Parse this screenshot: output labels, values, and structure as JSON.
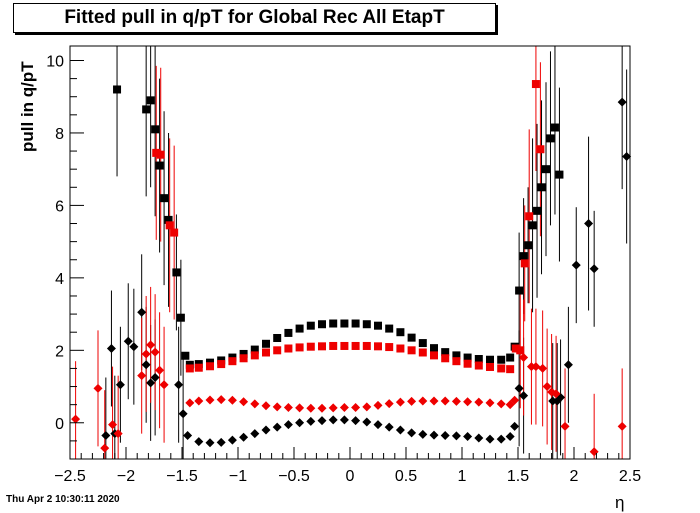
{
  "title": "Fitted pull in q/pT for Global Rec All EtapT",
  "timestamp": "Thu Apr  2 10:30:11 2020",
  "chart_data": {
    "type": "scatter",
    "title": "Fitted pull in q/pT for Global Rec All EtapT",
    "xlabel": "η",
    "ylabel": "pull in q/pT",
    "xlim": [
      -2.5,
      2.5
    ],
    "ylim": [
      -1.0,
      10.4
    ],
    "x_ticks": [
      "−2.5",
      "−2",
      "−1.5",
      "−1",
      "−0.5",
      "0",
      "0.5",
      "1",
      "1.5",
      "2",
      "2.5"
    ],
    "x_tick_values": [
      -2.5,
      -2,
      -1.5,
      -1,
      -0.5,
      0,
      0.5,
      1,
      1.5,
      2,
      2.5
    ],
    "y_ticks": [
      "0",
      "2",
      "4",
      "6",
      "8",
      "10"
    ],
    "y_tick_values": [
      0,
      2,
      4,
      6,
      8,
      10
    ],
    "grid": false,
    "series": [
      {
        "marker": "square",
        "color": "#000000",
        "points": [
          [
            -2.08,
            9.2
          ],
          [
            -1.82,
            8.65
          ],
          [
            -1.78,
            8.9
          ],
          [
            -1.74,
            8.1
          ],
          [
            -1.7,
            7.1
          ],
          [
            -1.66,
            6.2
          ],
          [
            -1.62,
            5.6
          ],
          [
            -1.55,
            4.15
          ],
          [
            -1.51,
            2.9
          ],
          [
            -1.47,
            1.85
          ],
          [
            -1.43,
            1.6
          ],
          [
            -1.35,
            1.62
          ],
          [
            -1.25,
            1.66
          ],
          [
            -1.15,
            1.72
          ],
          [
            -1.05,
            1.8
          ],
          [
            -0.95,
            1.9
          ],
          [
            -0.85,
            2.02
          ],
          [
            -0.75,
            2.18
          ],
          [
            -0.65,
            2.34
          ],
          [
            -0.55,
            2.48
          ],
          [
            -0.45,
            2.6
          ],
          [
            -0.35,
            2.68
          ],
          [
            -0.25,
            2.72
          ],
          [
            -0.15,
            2.74
          ],
          [
            -0.05,
            2.74
          ],
          [
            0.05,
            2.74
          ],
          [
            0.15,
            2.72
          ],
          [
            0.25,
            2.68
          ],
          [
            0.35,
            2.6
          ],
          [
            0.45,
            2.5
          ],
          [
            0.55,
            2.35
          ],
          [
            0.65,
            2.2
          ],
          [
            0.75,
            2.06
          ],
          [
            0.85,
            1.95
          ],
          [
            0.95,
            1.86
          ],
          [
            1.05,
            1.8
          ],
          [
            1.15,
            1.76
          ],
          [
            1.25,
            1.74
          ],
          [
            1.35,
            1.74
          ],
          [
            1.43,
            1.8
          ],
          [
            1.47,
            2.1
          ],
          [
            1.51,
            3.65
          ],
          [
            1.55,
            4.6
          ],
          [
            1.59,
            4.9
          ],
          [
            1.63,
            5.45
          ],
          [
            1.67,
            5.85
          ],
          [
            1.71,
            6.5
          ],
          [
            1.75,
            7.0
          ],
          [
            1.79,
            7.85
          ],
          [
            1.83,
            8.15
          ],
          [
            1.87,
            6.85
          ]
        ]
      },
      {
        "marker": "square",
        "color": "#ee0000",
        "points": [
          [
            -1.73,
            7.45
          ],
          [
            -1.69,
            7.4
          ],
          [
            -1.61,
            5.45
          ],
          [
            -1.57,
            5.25
          ],
          [
            -1.43,
            1.5
          ],
          [
            -1.35,
            1.52
          ],
          [
            -1.25,
            1.56
          ],
          [
            -1.15,
            1.62
          ],
          [
            -1.05,
            1.7
          ],
          [
            -0.95,
            1.78
          ],
          [
            -0.85,
            1.86
          ],
          [
            -0.75,
            1.94
          ],
          [
            -0.65,
            2.0
          ],
          [
            -0.55,
            2.05
          ],
          [
            -0.45,
            2.08
          ],
          [
            -0.35,
            2.1
          ],
          [
            -0.25,
            2.11
          ],
          [
            -0.15,
            2.12
          ],
          [
            -0.05,
            2.12
          ],
          [
            0.05,
            2.12
          ],
          [
            0.15,
            2.12
          ],
          [
            0.25,
            2.11
          ],
          [
            0.35,
            2.09
          ],
          [
            0.45,
            2.05
          ],
          [
            0.55,
            2.0
          ],
          [
            0.65,
            1.94
          ],
          [
            0.75,
            1.86
          ],
          [
            0.85,
            1.78
          ],
          [
            0.95,
            1.7
          ],
          [
            1.05,
            1.63
          ],
          [
            1.15,
            1.58
          ],
          [
            1.25,
            1.54
          ],
          [
            1.35,
            1.5
          ],
          [
            1.43,
            1.48
          ],
          [
            1.48,
            2.05
          ],
          [
            1.52,
            2.0
          ],
          [
            1.56,
            4.4
          ],
          [
            1.6,
            5.7
          ],
          [
            1.66,
            9.35
          ],
          [
            1.7,
            7.55
          ]
        ]
      },
      {
        "marker": "diamond",
        "color": "#000000",
        "points": [
          [
            -2.18,
            -0.35
          ],
          [
            -2.13,
            2.05
          ],
          [
            -2.1,
            -0.3
          ],
          [
            -2.05,
            1.05
          ],
          [
            -1.98,
            2.25
          ],
          [
            -1.93,
            2.1
          ],
          [
            -1.86,
            3.05
          ],
          [
            -1.82,
            1.6
          ],
          [
            -1.78,
            1.1
          ],
          [
            -1.74,
            1.25
          ],
          [
            -1.53,
            1.05
          ],
          [
            -1.49,
            0.25
          ],
          [
            -1.45,
            -0.35
          ],
          [
            -1.35,
            -0.52
          ],
          [
            -1.25,
            -0.55
          ],
          [
            -1.15,
            -0.54
          ],
          [
            -1.05,
            -0.48
          ],
          [
            -0.95,
            -0.4
          ],
          [
            -0.85,
            -0.3
          ],
          [
            -0.75,
            -0.2
          ],
          [
            -0.65,
            -0.12
          ],
          [
            -0.55,
            -0.05
          ],
          [
            -0.45,
            0.0
          ],
          [
            -0.35,
            0.04
          ],
          [
            -0.25,
            0.06
          ],
          [
            -0.15,
            0.08
          ],
          [
            -0.05,
            0.08
          ],
          [
            0.05,
            0.06
          ],
          [
            0.15,
            0.02
          ],
          [
            0.25,
            -0.05
          ],
          [
            0.35,
            -0.12
          ],
          [
            0.45,
            -0.2
          ],
          [
            0.55,
            -0.28
          ],
          [
            0.65,
            -0.32
          ],
          [
            0.75,
            -0.34
          ],
          [
            0.85,
            -0.35
          ],
          [
            0.95,
            -0.36
          ],
          [
            1.05,
            -0.38
          ],
          [
            1.15,
            -0.42
          ],
          [
            1.25,
            -0.45
          ],
          [
            1.35,
            -0.45
          ],
          [
            1.43,
            -0.38
          ],
          [
            1.47,
            -0.1
          ],
          [
            1.51,
            0.95
          ],
          [
            1.55,
            0.75
          ],
          [
            1.85,
            0.6
          ],
          [
            1.95,
            1.6
          ],
          [
            2.02,
            4.35
          ],
          [
            2.18,
            4.25
          ],
          [
            2.43,
            8.85
          ],
          [
            2.47,
            7.35
          ],
          [
            2.13,
            5.5
          ],
          [
            1.81,
            0.6
          ],
          [
            1.88,
            0.7
          ]
        ]
      },
      {
        "marker": "diamond",
        "color": "#ee0000",
        "points": [
          [
            -2.45,
            0.1
          ],
          [
            -2.25,
            0.95
          ],
          [
            -2.19,
            -0.7
          ],
          [
            -2.12,
            -0.05
          ],
          [
            -2.07,
            -0.3
          ],
          [
            -1.86,
            1.3
          ],
          [
            -1.82,
            1.9
          ],
          [
            -1.78,
            2.15
          ],
          [
            -1.74,
            1.95
          ],
          [
            -1.7,
            1.45
          ],
          [
            -1.66,
            1.05
          ],
          [
            -1.43,
            0.55
          ],
          [
            -1.35,
            0.6
          ],
          [
            -1.25,
            0.63
          ],
          [
            -1.15,
            0.64
          ],
          [
            -1.05,
            0.62
          ],
          [
            -0.95,
            0.58
          ],
          [
            -0.85,
            0.52
          ],
          [
            -0.75,
            0.47
          ],
          [
            -0.65,
            0.44
          ],
          [
            -0.55,
            0.42
          ],
          [
            -0.45,
            0.41
          ],
          [
            -0.35,
            0.4
          ],
          [
            -0.25,
            0.4
          ],
          [
            -0.15,
            0.41
          ],
          [
            -0.05,
            0.42
          ],
          [
            0.05,
            0.42
          ],
          [
            0.15,
            0.44
          ],
          [
            0.25,
            0.48
          ],
          [
            0.35,
            0.53
          ],
          [
            0.45,
            0.57
          ],
          [
            0.55,
            0.59
          ],
          [
            0.65,
            0.6
          ],
          [
            0.75,
            0.6
          ],
          [
            0.85,
            0.6
          ],
          [
            0.95,
            0.59
          ],
          [
            1.05,
            0.58
          ],
          [
            1.15,
            0.57
          ],
          [
            1.25,
            0.55
          ],
          [
            1.35,
            0.52
          ],
          [
            1.43,
            0.5
          ],
          [
            1.47,
            0.62
          ],
          [
            1.55,
            1.8
          ],
          [
            1.62,
            1.55
          ],
          [
            1.66,
            1.55
          ],
          [
            1.72,
            1.5
          ],
          [
            1.76,
            1.0
          ],
          [
            1.8,
            0.85
          ],
          [
            1.84,
            0.8
          ],
          [
            1.92,
            -0.1
          ],
          [
            2.18,
            -0.8
          ],
          [
            2.43,
            -0.1
          ]
        ]
      }
    ]
  }
}
